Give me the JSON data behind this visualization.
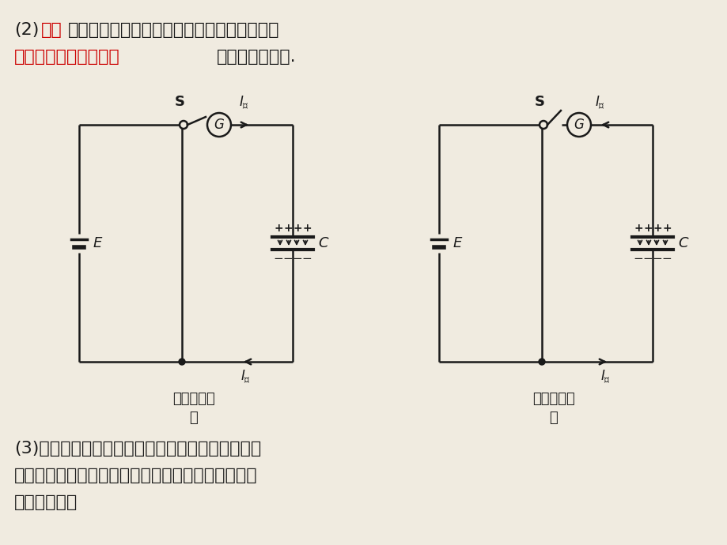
{
  "bg_color": "#f0ebe0",
  "line_color": "#1a1a1a",
  "red_color": "#cc0000",
  "title_line1_black1": "(2)",
  "title_line1_red": "放电",
  "title_line1_black2": "：用导线将充好电的电容器的两极板相连，使",
  "title_line2_red": "两极板的异种电荷中和",
  "title_line2_black": "的过程，如图乙.",
  "caption_left1": "电容器充电",
  "caption_left2": "甲",
  "caption_right1": "电容器放电",
  "caption_right2": "乙",
  "bottom1": "(3)电容器充放电时的能量转化：充电后，电容器储",
  "bottom2": "存了电能．放电时，储存的电能释放出来，转化为其",
  "bottom3": "他形式的能．"
}
